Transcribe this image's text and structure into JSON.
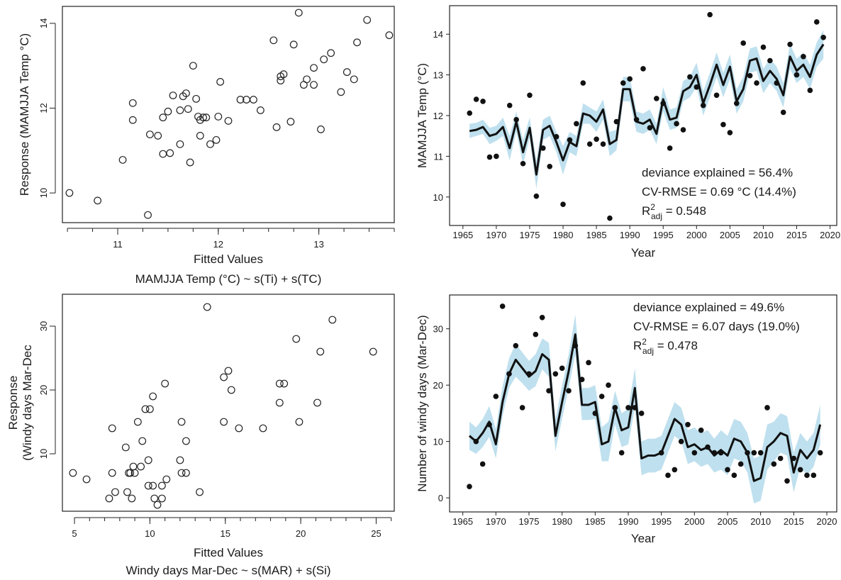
{
  "chart_data": [
    {
      "type": "scatter",
      "xlabel": "Fitted Values",
      "subtitle": "MAMJJA Temp (°C) ~ s(Ti) + s(TC)",
      "ylabel": "Response (MAMJJA Temp °C)",
      "xlim": [
        10.45,
        13.75
      ],
      "ylim": [
        9.3,
        14.4
      ],
      "xticks": [
        11,
        12,
        13
      ],
      "yticks": [
        10,
        12,
        14
      ],
      "points": [
        [
          10.52,
          10.0
        ],
        [
          10.8,
          9.82
        ],
        [
          11.05,
          10.78
        ],
        [
          11.15,
          12.12
        ],
        [
          11.15,
          11.72
        ],
        [
          11.3,
          9.48
        ],
        [
          11.32,
          11.38
        ],
        [
          11.4,
          11.35
        ],
        [
          11.45,
          11.78
        ],
        [
          11.45,
          10.92
        ],
        [
          11.5,
          11.92
        ],
        [
          11.52,
          10.94
        ],
        [
          11.55,
          12.3
        ],
        [
          11.62,
          11.15
        ],
        [
          11.62,
          11.95
        ],
        [
          11.65,
          12.28
        ],
        [
          11.68,
          12.35
        ],
        [
          11.7,
          11.98
        ],
        [
          11.72,
          10.72
        ],
        [
          11.75,
          13.0
        ],
        [
          11.78,
          12.22
        ],
        [
          11.8,
          11.8
        ],
        [
          11.82,
          11.35
        ],
        [
          11.82,
          11.72
        ],
        [
          11.85,
          11.78
        ],
        [
          11.88,
          11.78
        ],
        [
          11.92,
          11.15
        ],
        [
          11.98,
          11.25
        ],
        [
          12.0,
          11.8
        ],
        [
          12.02,
          12.62
        ],
        [
          12.1,
          11.7
        ],
        [
          12.22,
          12.2
        ],
        [
          12.28,
          12.2
        ],
        [
          12.35,
          12.2
        ],
        [
          12.42,
          11.95
        ],
        [
          12.55,
          13.6
        ],
        [
          12.58,
          11.55
        ],
        [
          12.62,
          12.75
        ],
        [
          12.62,
          12.65
        ],
        [
          12.65,
          12.8
        ],
        [
          12.72,
          11.68
        ],
        [
          12.75,
          13.5
        ],
        [
          12.8,
          14.25
        ],
        [
          12.85,
          12.55
        ],
        [
          12.88,
          12.68
        ],
        [
          12.95,
          12.95
        ],
        [
          12.95,
          12.55
        ],
        [
          13.02,
          11.5
        ],
        [
          13.05,
          13.15
        ],
        [
          13.12,
          13.3
        ],
        [
          13.22,
          12.38
        ],
        [
          13.28,
          12.85
        ],
        [
          13.35,
          12.68
        ],
        [
          13.38,
          13.55
        ],
        [
          13.48,
          14.08
        ],
        [
          13.7,
          13.72
        ]
      ]
    },
    {
      "type": "line",
      "xlabel": "Year",
      "ylabel": "MAMJJA Temp (°C)",
      "xlim": [
        1963,
        2021
      ],
      "ylim": [
        9.3,
        14.7
      ],
      "xticks": [
        1965,
        1970,
        1975,
        1980,
        1985,
        1990,
        1995,
        2000,
        2005,
        2010,
        2015,
        2020
      ],
      "yticks": [
        10,
        11,
        12,
        13,
        14
      ],
      "annotations": [
        {
          "text": "deviance explained = 56.4%"
        },
        {
          "text": "CV-RMSE = 0.69 °C (14.4%)"
        },
        {
          "pre": "R",
          "sup": "2",
          "sub": "adj",
          "post": " = 0.548"
        }
      ],
      "years": [
        1966,
        1967,
        1968,
        1969,
        1970,
        1971,
        1972,
        1973,
        1974,
        1975,
        1976,
        1977,
        1978,
        1979,
        1980,
        1981,
        1982,
        1983,
        1984,
        1985,
        1986,
        1987,
        1988,
        1989,
        1990,
        1991,
        1992,
        1993,
        1994,
        1995,
        1996,
        1997,
        1998,
        1999,
        2000,
        2001,
        2002,
        2003,
        2004,
        2005,
        2006,
        2007,
        2008,
        2009,
        2010,
        2011,
        2012,
        2013,
        2014,
        2015,
        2016,
        2017,
        2018,
        2019
      ],
      "fitted": [
        11.62,
        11.65,
        11.72,
        11.5,
        11.55,
        11.72,
        11.2,
        11.85,
        11.1,
        11.7,
        10.55,
        11.65,
        11.75,
        11.35,
        10.9,
        11.35,
        11.25,
        12.05,
        12.0,
        11.85,
        12.15,
        11.3,
        11.4,
        12.65,
        12.65,
        11.85,
        11.8,
        11.9,
        11.55,
        12.4,
        11.9,
        11.95,
        12.6,
        12.7,
        13.0,
        12.3,
        12.75,
        13.25,
        12.75,
        13.2,
        12.35,
        12.65,
        13.35,
        13.4,
        12.85,
        13.1,
        12.9,
        12.5,
        13.45,
        13.1,
        13.25,
        12.95,
        13.5,
        13.75
      ],
      "ci_low": [
        11.45,
        11.5,
        11.55,
        11.3,
        11.38,
        11.5,
        10.9,
        11.6,
        10.8,
        11.45,
        10.2,
        11.4,
        11.5,
        11.1,
        10.55,
        11.1,
        11.0,
        11.8,
        11.8,
        11.6,
        11.9,
        11.0,
        11.15,
        12.35,
        12.35,
        11.6,
        11.55,
        11.65,
        11.3,
        12.1,
        11.65,
        11.7,
        12.35,
        12.45,
        12.7,
        12.0,
        12.45,
        12.95,
        12.45,
        12.9,
        12.05,
        12.35,
        13.05,
        13.1,
        12.55,
        12.8,
        12.6,
        12.2,
        13.15,
        12.8,
        12.95,
        12.65,
        13.2,
        13.4
      ],
      "ci_high": [
        11.8,
        11.82,
        11.9,
        11.7,
        11.75,
        11.95,
        11.5,
        12.1,
        11.4,
        11.95,
        10.9,
        11.9,
        12.0,
        11.6,
        11.25,
        11.6,
        11.5,
        12.3,
        12.2,
        12.1,
        12.4,
        11.6,
        11.65,
        12.95,
        12.95,
        12.1,
        12.05,
        12.15,
        11.8,
        12.7,
        12.15,
        12.2,
        12.85,
        12.95,
        13.3,
        12.6,
        13.05,
        13.55,
        13.05,
        13.5,
        12.65,
        12.95,
        13.65,
        13.7,
        13.15,
        13.4,
        13.2,
        12.8,
        13.75,
        13.4,
        13.55,
        13.25,
        13.8,
        14.1
      ],
      "observed": [
        [
          1966,
          12.06
        ],
        [
          1967,
          12.4
        ],
        [
          1968,
          12.35
        ],
        [
          1969,
          10.98
        ],
        [
          1970,
          11.0
        ],
        [
          1972,
          12.25
        ],
        [
          1973,
          11.9
        ],
        [
          1974,
          10.82
        ],
        [
          1975,
          12.5
        ],
        [
          1976,
          10.02
        ],
        [
          1977,
          11.2
        ],
        [
          1978,
          10.75
        ],
        [
          1979,
          11.48
        ],
        [
          1980,
          9.82
        ],
        [
          1981,
          11.4
        ],
        [
          1982,
          11.8
        ],
        [
          1983,
          12.8
        ],
        [
          1984,
          11.3
        ],
        [
          1985,
          11.42
        ],
        [
          1986,
          11.3
        ],
        [
          1987,
          9.48
        ],
        [
          1988,
          11.85
        ],
        [
          1989,
          12.8
        ],
        [
          1990,
          12.9
        ],
        [
          1991,
          11.9
        ],
        [
          1992,
          13.15
        ],
        [
          1993,
          11.7
        ],
        [
          1994,
          12.42
        ],
        [
          1995,
          12.3
        ],
        [
          1996,
          11.2
        ],
        [
          1997,
          11.8
        ],
        [
          1998,
          11.65
        ],
        [
          1999,
          12.95
        ],
        [
          2000,
          12.7
        ],
        [
          2001,
          12.25
        ],
        [
          2002,
          14.48
        ],
        [
          2003,
          12.5
        ],
        [
          2004,
          11.78
        ],
        [
          2005,
          11.58
        ],
        [
          2006,
          12.3
        ],
        [
          2007,
          13.78
        ],
        [
          2008,
          12.98
        ],
        [
          2009,
          12.8
        ],
        [
          2010,
          13.68
        ],
        [
          2011,
          13.35
        ],
        [
          2012,
          12.8
        ],
        [
          2013,
          12.08
        ],
        [
          2014,
          13.75
        ],
        [
          2015,
          13.0
        ],
        [
          2016,
          13.45
        ],
        [
          2017,
          12.62
        ],
        [
          2018,
          14.3
        ],
        [
          2019,
          13.92
        ]
      ]
    },
    {
      "type": "scatter",
      "xlabel": "Fitted Values",
      "subtitle": "Windy days Mar-Dec ~ s(MAR) + s(Si)",
      "ylabel_lines": [
        "Response",
        "(Windy days Mar-Dec"
      ],
      "xlim": [
        4.2,
        26.2
      ],
      "ylim": [
        1.0,
        35.0
      ],
      "xticks": [
        5,
        10,
        15,
        20,
        25
      ],
      "yticks": [
        10,
        20,
        30
      ],
      "points": [
        [
          4.9,
          7.0
        ],
        [
          5.8,
          6.0
        ],
        [
          7.3,
          3.0
        ],
        [
          7.5,
          14.0
        ],
        [
          7.5,
          7.0
        ],
        [
          7.7,
          4.0
        ],
        [
          8.4,
          11.0
        ],
        [
          8.5,
          4.0
        ],
        [
          8.6,
          7.0
        ],
        [
          8.7,
          7.0
        ],
        [
          8.8,
          3.0
        ],
        [
          8.9,
          8.0
        ],
        [
          9.0,
          7.0
        ],
        [
          9.2,
          15.0
        ],
        [
          9.4,
          8.0
        ],
        [
          9.5,
          12.0
        ],
        [
          9.7,
          17.0
        ],
        [
          9.9,
          9.0
        ],
        [
          9.9,
          5.0
        ],
        [
          10.0,
          17.0
        ],
        [
          10.2,
          19.0
        ],
        [
          10.2,
          5.0
        ],
        [
          10.3,
          3.0
        ],
        [
          10.5,
          2.0
        ],
        [
          10.8,
          3.0
        ],
        [
          10.8,
          5.0
        ],
        [
          11.0,
          21.0
        ],
        [
          11.1,
          6.0
        ],
        [
          12.0,
          9.0
        ],
        [
          12.1,
          7.0
        ],
        [
          12.1,
          15.0
        ],
        [
          12.4,
          7.0
        ],
        [
          12.4,
          12.0
        ],
        [
          13.3,
          4.0
        ],
        [
          13.8,
          33.0
        ],
        [
          14.9,
          22.0
        ],
        [
          14.9,
          15.0
        ],
        [
          15.2,
          23.0
        ],
        [
          15.4,
          20.0
        ],
        [
          15.9,
          14.0
        ],
        [
          17.5,
          14.0
        ],
        [
          18.6,
          18.0
        ],
        [
          18.6,
          21.0
        ],
        [
          18.9,
          21.0
        ],
        [
          19.7,
          28.0
        ],
        [
          19.9,
          15.0
        ],
        [
          21.1,
          18.0
        ],
        [
          21.3,
          26.0
        ],
        [
          22.1,
          31.0
        ],
        [
          24.8,
          26.0
        ]
      ]
    },
    {
      "type": "line",
      "xlabel": "Year",
      "ylabel": "Number of windy days (Mar-Dec)",
      "xlim": [
        1963,
        2021.5
      ],
      "ylim": [
        -2.5,
        36.0
      ],
      "xticks": [
        1965,
        1970,
        1975,
        1980,
        1985,
        1990,
        1995,
        2000,
        2005,
        2010,
        2015,
        2020
      ],
      "yticks": [
        0,
        10,
        20,
        30
      ],
      "annotations": [
        {
          "text": "deviance explained = 49.6%"
        },
        {
          "text": "CV-RMSE = 6.07 days (19.0%)"
        },
        {
          "pre": "R",
          "sup": "2",
          "sub": "adj",
          "post": " = 0.478"
        }
      ],
      "years": [
        1966,
        1967,
        1968,
        1969,
        1970,
        1971,
        1972,
        1973,
        1974,
        1975,
        1976,
        1977,
        1978,
        1979,
        1980,
        1981,
        1982,
        1983,
        1984,
        1985,
        1986,
        1987,
        1988,
        1989,
        1990,
        1991,
        1992,
        1993,
        1994,
        1995,
        1996,
        1997,
        1998,
        1999,
        2000,
        2001,
        2002,
        2003,
        2004,
        2005,
        2006,
        2007,
        2008,
        2009,
        2010,
        2011,
        2012,
        2013,
        2014,
        2015,
        2016,
        2017,
        2018,
        2019
      ],
      "fitted": [
        11.0,
        10.0,
        11.5,
        13.5,
        9.5,
        17.0,
        22.0,
        24.5,
        23.0,
        21.5,
        22.5,
        25.5,
        24.5,
        11.0,
        17.0,
        22.5,
        29.0,
        16.5,
        16.5,
        17.0,
        9.5,
        10.0,
        16.0,
        12.0,
        12.5,
        19.5,
        7.0,
        7.5,
        7.5,
        8.0,
        11.0,
        14.0,
        13.0,
        9.0,
        9.5,
        8.5,
        9.0,
        7.5,
        8.5,
        7.5,
        10.5,
        10.0,
        8.0,
        3.0,
        3.5,
        9.0,
        10.0,
        11.5,
        11.0,
        4.5,
        8.5,
        7.0,
        8.5,
        13.0
      ],
      "ci_low": [
        8.5,
        7.8,
        9.0,
        10.8,
        7.0,
        14.5,
        19.5,
        21.5,
        20.3,
        19.0,
        19.8,
        22.8,
        21.5,
        8.3,
        14.0,
        19.5,
        25.5,
        13.8,
        13.8,
        14.0,
        6.5,
        6.5,
        13.0,
        9.0,
        9.5,
        16.0,
        4.0,
        4.5,
        4.5,
        5.0,
        8.0,
        11.0,
        10.0,
        6.0,
        6.5,
        5.5,
        6.0,
        4.5,
        5.0,
        4.0,
        7.0,
        6.5,
        4.5,
        -1.0,
        -0.5,
        5.0,
        6.5,
        8.0,
        7.5,
        1.0,
        5.5,
        4.0,
        5.5,
        9.5
      ],
      "ci_high": [
        13.5,
        12.5,
        14.0,
        16.3,
        12.2,
        19.8,
        24.8,
        27.3,
        25.8,
        24.3,
        25.5,
        28.3,
        27.5,
        13.8,
        20.0,
        25.5,
        32.5,
        19.5,
        19.5,
        20.0,
        12.5,
        13.5,
        19.0,
        15.0,
        15.8,
        23.0,
        10.0,
        10.5,
        10.5,
        11.0,
        14.0,
        17.0,
        16.0,
        12.0,
        12.5,
        11.5,
        12.0,
        10.5,
        12.0,
        11.0,
        14.0,
        13.5,
        11.5,
        7.0,
        7.5,
        13.0,
        13.5,
        15.0,
        14.5,
        8.0,
        11.5,
        10.0,
        11.5,
        16.5
      ],
      "observed": [
        [
          1966,
          2
        ],
        [
          1967,
          10
        ],
        [
          1968,
          6
        ],
        [
          1969,
          13
        ],
        [
          1970,
          18
        ],
        [
          1971,
          34
        ],
        [
          1972,
          22
        ],
        [
          1973,
          27
        ],
        [
          1974,
          16
        ],
        [
          1975,
          22
        ],
        [
          1976,
          29
        ],
        [
          1977,
          32
        ],
        [
          1978,
          19
        ],
        [
          1979,
          22
        ],
        [
          1980,
          23
        ],
        [
          1981,
          19
        ],
        [
          1982,
          27
        ],
        [
          1983,
          21
        ],
        [
          1984,
          24
        ],
        [
          1985,
          15
        ],
        [
          1986,
          18
        ],
        [
          1987,
          20
        ],
        [
          1988,
          16
        ],
        [
          1989,
          8
        ],
        [
          1990,
          16
        ],
        [
          1991,
          16
        ],
        [
          1992,
          15
        ],
        [
          1995,
          8
        ],
        [
          1996,
          4
        ],
        [
          1997,
          5
        ],
        [
          1998,
          10
        ],
        [
          1999,
          13
        ],
        [
          2000,
          8
        ],
        [
          2001,
          12
        ],
        [
          2002,
          9
        ],
        [
          2003,
          8
        ],
        [
          2004,
          8
        ],
        [
          2005,
          5
        ],
        [
          2006,
          4
        ],
        [
          2007,
          6
        ],
        [
          2008,
          8
        ],
        [
          2009,
          8
        ],
        [
          2010,
          8
        ],
        [
          2011,
          16
        ],
        [
          2012,
          6
        ],
        [
          2013,
          7
        ],
        [
          2014,
          3
        ],
        [
          2015,
          7
        ],
        [
          2016,
          5
        ],
        [
          2017,
          4
        ],
        [
          2018,
          4
        ],
        [
          2019,
          8
        ]
      ]
    }
  ]
}
